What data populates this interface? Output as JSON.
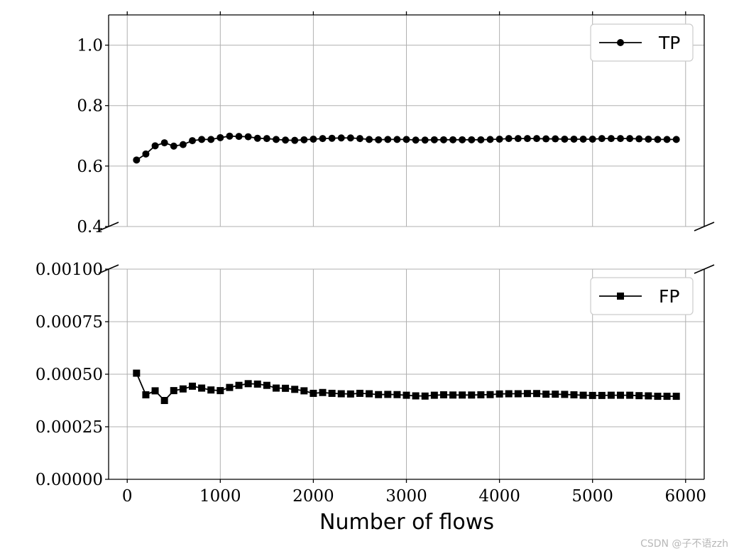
{
  "chart_data": {
    "type": "line",
    "xlabel": "Number of flows",
    "x_ticks": [
      "0",
      "1000",
      "2000",
      "3000",
      "4000",
      "5000",
      "6000"
    ],
    "xlim": [
      -200,
      6200
    ],
    "grid": true,
    "x": [
      100,
      200,
      300,
      400,
      500,
      600,
      700,
      800,
      900,
      1000,
      1100,
      1200,
      1300,
      1400,
      1500,
      1600,
      1700,
      1800,
      1900,
      2000,
      2100,
      2200,
      2300,
      2400,
      2500,
      2600,
      2700,
      2800,
      2900,
      3000,
      3100,
      3200,
      3300,
      3400,
      3500,
      3600,
      3700,
      3800,
      3900,
      4000,
      4100,
      4200,
      4300,
      4400,
      4500,
      4600,
      4700,
      4800,
      4900,
      5000,
      5100,
      5200,
      5300,
      5400,
      5500,
      5600,
      5700,
      5800,
      5900
    ],
    "panels": [
      {
        "position": "top",
        "ylim": [
          0.4,
          1.1
        ],
        "y_ticks": [
          "0.4",
          "0.6",
          "0.8",
          "1.0"
        ],
        "legend_position": "top-right",
        "series": [
          {
            "name": "TP",
            "marker": "circle",
            "color": "#000000",
            "values": [
              0.62,
              0.64,
              0.667,
              0.677,
              0.666,
              0.671,
              0.684,
              0.688,
              0.688,
              0.694,
              0.699,
              0.698,
              0.697,
              0.692,
              0.691,
              0.688,
              0.686,
              0.685,
              0.687,
              0.689,
              0.691,
              0.692,
              0.693,
              0.693,
              0.691,
              0.688,
              0.687,
              0.688,
              0.688,
              0.688,
              0.686,
              0.686,
              0.687,
              0.687,
              0.687,
              0.687,
              0.687,
              0.687,
              0.688,
              0.689,
              0.691,
              0.691,
              0.691,
              0.691,
              0.69,
              0.69,
              0.689,
              0.689,
              0.689,
              0.689,
              0.691,
              0.691,
              0.691,
              0.691,
              0.69,
              0.689,
              0.688,
              0.688,
              0.688
            ]
          }
        ]
      },
      {
        "position": "bottom",
        "ylim": [
          0.0,
          0.001
        ],
        "y_ticks": [
          "0.00000",
          "0.00025",
          "0.00050",
          "0.00075",
          "0.00100"
        ],
        "legend_position": "top-right",
        "series": [
          {
            "name": "FP",
            "marker": "square",
            "color": "#000000",
            "values": [
              0.000505,
              0.000402,
              0.000421,
              0.000375,
              0.000422,
              0.00043,
              0.000443,
              0.000434,
              0.000425,
              0.000422,
              0.000437,
              0.000447,
              0.000455,
              0.000453,
              0.000447,
              0.000434,
              0.000433,
              0.000428,
              0.000421,
              0.000409,
              0.000413,
              0.000409,
              0.000407,
              0.000406,
              0.000409,
              0.000407,
              0.000403,
              0.000404,
              0.000403,
              0.0004,
              0.000397,
              0.000396,
              0.0004,
              0.000402,
              0.000401,
              0.000401,
              0.000401,
              0.000402,
              0.000403,
              0.000406,
              0.000407,
              0.000407,
              0.000408,
              0.000408,
              0.000405,
              0.000405,
              0.000404,
              0.000402,
              0.0004,
              0.000399,
              0.000399,
              0.0004,
              0.0004,
              0.0004,
              0.000398,
              0.000397,
              0.000395,
              0.000395,
              0.000395
            ]
          }
        ]
      }
    ]
  },
  "watermark": "CSDN @子不语zzh"
}
